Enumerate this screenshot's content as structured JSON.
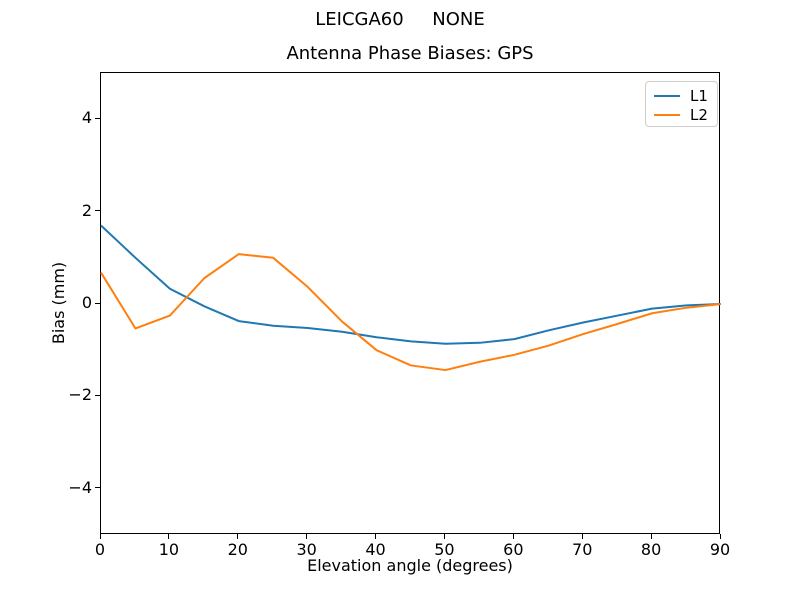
{
  "figure": {
    "suptitle": "LEICGA60     NONE",
    "axes_title": "Antenna Phase Biases: GPS",
    "xlabel": "Elevation angle (degrees)",
    "ylabel": "Bias (mm)"
  },
  "legend": {
    "items": [
      {
        "label": "L1",
        "color": "#1f77b4"
      },
      {
        "label": "L2",
        "color": "#ff7f0e"
      }
    ]
  },
  "chart_data": {
    "type": "line",
    "suptitle": "LEICGA60     NONE",
    "title": "Antenna Phase Biases: GPS",
    "xlabel": "Elevation angle (degrees)",
    "ylabel": "Bias (mm)",
    "xlim": [
      0,
      90
    ],
    "ylim": [
      -5,
      5
    ],
    "xticks": [
      0,
      10,
      20,
      30,
      40,
      50,
      60,
      70,
      80,
      90
    ],
    "yticks": [
      -4,
      -2,
      0,
      2,
      4
    ],
    "grid": false,
    "legend_position": "upper right",
    "line_width": 2,
    "x": [
      0,
      5,
      10,
      15,
      20,
      25,
      30,
      35,
      40,
      45,
      50,
      55,
      60,
      65,
      70,
      75,
      80,
      85,
      90
    ],
    "series": [
      {
        "name": "L1",
        "color": "#1f77b4",
        "values": [
          1.7,
          1.0,
          0.33,
          -0.05,
          -0.37,
          -0.47,
          -0.52,
          -0.6,
          -0.72,
          -0.81,
          -0.86,
          -0.84,
          -0.76,
          -0.57,
          -0.4,
          -0.25,
          -0.1,
          -0.03,
          0.0
        ]
      },
      {
        "name": "L2",
        "color": "#ff7f0e",
        "values": [
          0.68,
          -0.53,
          -0.25,
          0.56,
          1.08,
          1.0,
          0.37,
          -0.38,
          -1.0,
          -1.33,
          -1.43,
          -1.25,
          -1.1,
          -0.9,
          -0.65,
          -0.43,
          -0.2,
          -0.08,
          0.0
        ]
      }
    ]
  }
}
